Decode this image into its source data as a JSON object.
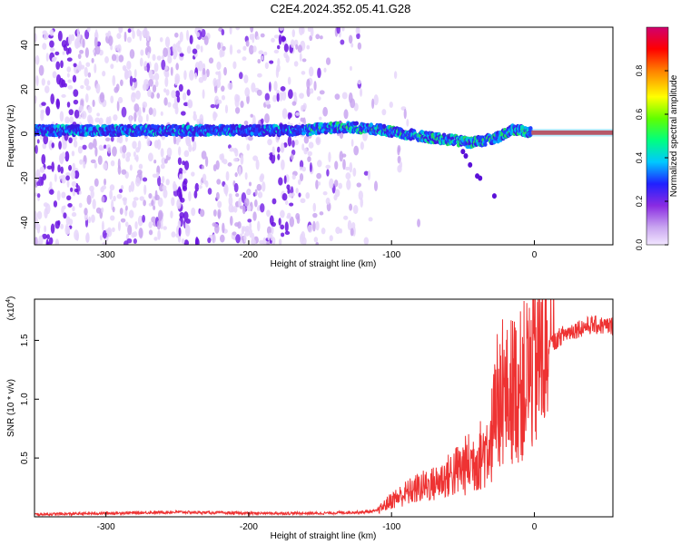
{
  "title": "C2E4.2024.352.05.41.G28",
  "chart_data": [
    {
      "type": "heatmap",
      "xlabel": "Height of straight line (km)",
      "ylabel": "Frequency (Hz)",
      "xlim": [
        -350,
        55
      ],
      "ylim": [
        -50,
        48
      ],
      "xticks": [
        -300,
        -200,
        -100,
        0
      ],
      "yticks": [
        -40,
        -20,
        0,
        20,
        40
      ],
      "colorbar": {
        "label": "Normalized spectral amplitude",
        "range": [
          0,
          1
        ],
        "ticks": [
          "0.0",
          "0.2",
          "0.4",
          "0.6",
          "0.8"
        ],
        "colormap": [
          "#ffffff",
          "#c9a6f0",
          "#8a2be2",
          "#0000ff",
          "#00c8ff",
          "#00ff80",
          "#a0ff00",
          "#ffff00",
          "#ff8000",
          "#ff0000",
          "#d0006f"
        ]
      },
      "ridge": [
        {
          "x": -350,
          "y": 1.5
        },
        {
          "x": -300,
          "y": 1.5
        },
        {
          "x": -250,
          "y": 1.5
        },
        {
          "x": -200,
          "y": 1.5
        },
        {
          "x": -160,
          "y": 1.5
        },
        {
          "x": -150,
          "y": 2.5
        },
        {
          "x": -130,
          "y": 3
        },
        {
          "x": -110,
          "y": 2
        },
        {
          "x": -90,
          "y": 0
        },
        {
          "x": -70,
          "y": -2
        },
        {
          "x": -55,
          "y": -3
        },
        {
          "x": -45,
          "y": -4
        },
        {
          "x": -35,
          "y": -3
        },
        {
          "x": -25,
          "y": -1.5
        },
        {
          "x": -15,
          "y": 2
        },
        {
          "x": -5,
          "y": 1
        },
        {
          "x": 0,
          "y": 0.5
        },
        {
          "x": 55,
          "y": 0.5
        }
      ]
    },
    {
      "type": "line",
      "xlabel": "Height of straight line (km)",
      "ylabel": "SNR (10 * v/v)",
      "scale_label": "(x10",
      "scale_exp": "4",
      "xlim": [
        -350,
        55
      ],
      "ylim": [
        0,
        1.85
      ],
      "xticks": [
        -300,
        -200,
        -100,
        0
      ],
      "yticks": [
        0.5,
        1.0,
        1.5
      ],
      "ytick_labels": [
        "0.5",
        "1.0",
        "1.5"
      ],
      "color": "#ee3333",
      "series": [
        {
          "x": [
            -350,
            -300,
            -250,
            -200,
            -150,
            -120,
            -110,
            -100,
            -90,
            -80,
            -70,
            -60,
            -50,
            -40,
            -35,
            -30,
            -25,
            -20,
            -15,
            -10,
            -5,
            0,
            10,
            20,
            30,
            40,
            55
          ],
          "y": [
            0.02,
            0.03,
            0.04,
            0.03,
            0.03,
            0.04,
            0.05,
            0.14,
            0.2,
            0.25,
            0.28,
            0.35,
            0.42,
            0.5,
            0.55,
            0.7,
            0.95,
            1.0,
            1.1,
            1.1,
            1.2,
            1.3,
            1.45,
            1.55,
            1.6,
            1.63,
            1.62
          ]
        }
      ]
    }
  ]
}
